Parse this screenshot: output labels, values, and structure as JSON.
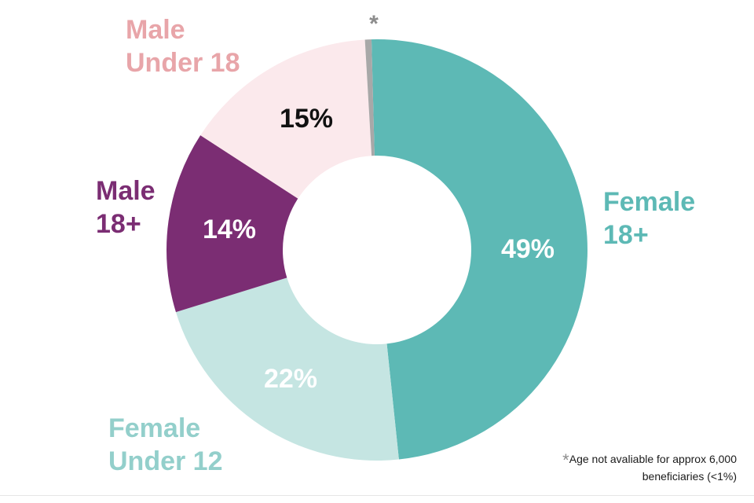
{
  "chart_data": {
    "type": "pie",
    "donut": true,
    "slices": [
      {
        "label_lines": [
          "Female",
          "18+"
        ],
        "value": 49,
        "value_label": "49%",
        "color": "#5db9b5",
        "label_color": "#5db9b5",
        "value_color": "#ffffff"
      },
      {
        "label_lines": [
          "Female",
          "Under 12"
        ],
        "value": 22,
        "value_label": "22%",
        "color": "#c5e5e2",
        "label_color": "#93cfcb",
        "value_color": "#ffffff"
      },
      {
        "label_lines": [
          "Male",
          "18+"
        ],
        "value": 14,
        "value_label": "14%",
        "color": "#7b2d73",
        "label_color": "#7b2d73",
        "value_color": "#ffffff"
      },
      {
        "label_lines": [
          "Male",
          "Under 18"
        ],
        "value": 15,
        "value_label": "15%",
        "color": "#fbe9ec",
        "label_color": "#e8a5a9",
        "value_color": "#111111"
      },
      {
        "label_lines": [
          "*"
        ],
        "value": 0.5,
        "value_label": "",
        "color": "#a8a8a8",
        "label_color": "#8c8c8c",
        "value_color": "#ffffff"
      }
    ],
    "footnote": {
      "marker": "*",
      "line1": "Age not avaliable for approx 6,000",
      "line2": "beneficiaries (<1%)"
    }
  }
}
